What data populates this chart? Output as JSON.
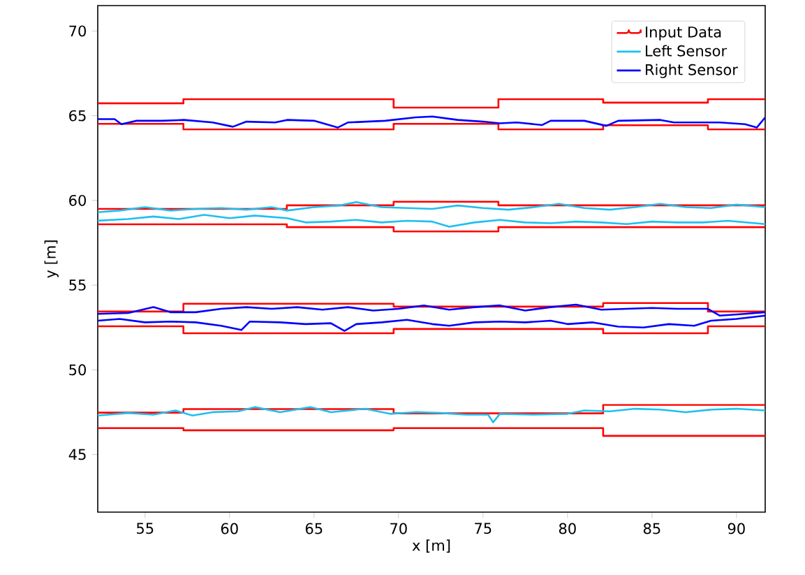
{
  "chart_data": {
    "type": "line",
    "xlabel": "x [m]",
    "ylabel": "y [m]",
    "xlim": [
      52.2,
      91.7
    ],
    "ylim": [
      41.6,
      71.5
    ],
    "xticks": [
      55,
      60,
      65,
      70,
      75,
      80,
      85,
      90
    ],
    "yticks": [
      45,
      50,
      55,
      60,
      65,
      70
    ],
    "legend": "top right",
    "x": [
      52.2,
      57.27,
      63.39,
      69.71,
      75.91,
      82.11,
      88.31,
      91.7
    ],
    "series": [
      {
        "name": "Input Data",
        "type": "step",
        "color": "#ff0000",
        "values": [
          65.73,
          65.98,
          65.98,
          65.48,
          65.98,
          65.77,
          65.98,
          65.98
        ]
      },
      {
        "type": "step",
        "color": "#ff0000",
        "values": [
          64.52,
          64.19,
          64.19,
          64.52,
          64.19,
          64.44,
          64.19,
          64.19
        ]
      },
      {
        "type": "step",
        "color": "#ff0000",
        "values": [
          59.5,
          59.5,
          59.71,
          59.92,
          59.71,
          59.71,
          59.71,
          59.71
        ]
      },
      {
        "type": "step",
        "color": "#ff0000",
        "values": [
          58.59,
          58.59,
          58.42,
          58.17,
          58.42,
          58.42,
          58.42,
          58.42
        ]
      },
      {
        "type": "step",
        "color": "#ff0000",
        "values": [
          53.44,
          53.9,
          53.9,
          53.73,
          53.73,
          53.94,
          53.44,
          53.44
        ]
      },
      {
        "type": "step",
        "color": "#ff0000",
        "values": [
          52.57,
          52.16,
          52.16,
          52.41,
          52.41,
          52.16,
          52.57,
          52.57
        ]
      },
      {
        "type": "step",
        "color": "#ff0000",
        "values": [
          47.47,
          47.68,
          47.68,
          47.43,
          47.43,
          47.93,
          47.93,
          47.93
        ]
      },
      {
        "type": "step",
        "color": "#ff0000",
        "values": [
          46.56,
          46.43,
          46.43,
          46.56,
          46.56,
          46.1,
          46.1,
          46.1
        ]
      },
      {
        "name": "Left Sensor",
        "color": "#1fbfef",
        "x": [
          52.2,
          53.5,
          55,
          56.5,
          58,
          59.5,
          61,
          62.5,
          63.4,
          65,
          66.5,
          67.5,
          69,
          70.5,
          72,
          73.5,
          75,
          76.5,
          78,
          79.5,
          81,
          82.5,
          84,
          85.5,
          87,
          88.5,
          90,
          91.7
        ],
        "values": [
          59.3,
          59.4,
          59.6,
          59.4,
          59.5,
          59.55,
          59.45,
          59.6,
          59.4,
          59.6,
          59.7,
          59.9,
          59.6,
          59.55,
          59.5,
          59.7,
          59.55,
          59.45,
          59.6,
          59.8,
          59.55,
          59.45,
          59.6,
          59.8,
          59.6,
          59.55,
          59.75,
          59.6
        ]
      },
      {
        "name": "Right Sensor",
        "color": "#0000ff",
        "x": [
          52.2,
          53.2,
          53.6,
          54.5,
          56,
          57.3,
          59,
          60.2,
          61,
          62.7,
          63.4,
          65,
          66.4,
          67,
          69.2,
          71,
          72,
          73.5,
          75,
          76,
          77,
          78.5,
          79,
          81,
          82.3,
          83,
          85.5,
          86.3,
          88,
          89,
          90.5,
          91.2,
          91.7
        ],
        "values": [
          64.8,
          64.8,
          64.5,
          64.7,
          64.7,
          64.75,
          64.6,
          64.35,
          64.65,
          64.6,
          64.75,
          64.7,
          64.3,
          64.6,
          64.7,
          64.9,
          64.95,
          64.75,
          64.65,
          64.55,
          64.6,
          64.45,
          64.7,
          64.7,
          64.4,
          64.7,
          64.75,
          64.6,
          64.6,
          64.6,
          64.5,
          64.3,
          64.9
        ]
      },
      {
        "color": "#1fbfef",
        "x": [
          52.2,
          54,
          55.5,
          57,
          58.5,
          60,
          61.5,
          63.4,
          64.5,
          66,
          67.5,
          69,
          70.5,
          72,
          73,
          74.5,
          76,
          77.5,
          79,
          80.5,
          82,
          83.5,
          85,
          86.5,
          88,
          89.5,
          91.7
        ],
        "values": [
          58.8,
          58.9,
          59.05,
          58.9,
          59.15,
          58.95,
          59.1,
          58.95,
          58.7,
          58.75,
          58.85,
          58.7,
          58.8,
          58.75,
          58.45,
          58.7,
          58.85,
          58.7,
          58.65,
          58.75,
          58.7,
          58.6,
          58.75,
          58.7,
          58.7,
          58.8,
          58.6
        ]
      },
      {
        "color": "#0000ff",
        "x": [
          52.2,
          54,
          55.5,
          56.5,
          58,
          59.5,
          61,
          62.5,
          64,
          65.5,
          67,
          68.5,
          70,
          71.5,
          73,
          74.5,
          76,
          77.5,
          79,
          80.5,
          82,
          83.5,
          85,
          86.5,
          88.3,
          89,
          90.5,
          91.7
        ],
        "values": [
          53.3,
          53.35,
          53.7,
          53.4,
          53.4,
          53.6,
          53.7,
          53.6,
          53.7,
          53.55,
          53.7,
          53.5,
          53.6,
          53.8,
          53.55,
          53.7,
          53.8,
          53.5,
          53.7,
          53.85,
          53.55,
          53.6,
          53.65,
          53.6,
          53.6,
          53.2,
          53.3,
          53.4
        ]
      },
      {
        "color": "#0000ff",
        "x": [
          52.2,
          53.5,
          55,
          56.5,
          58,
          59.5,
          60.7,
          61.2,
          63,
          64.5,
          66,
          66.8,
          67.5,
          69,
          70.5,
          72,
          73,
          74.5,
          76,
          77.5,
          79,
          80,
          81.5,
          83,
          84.5,
          86,
          87.5,
          88.5,
          90,
          91.7
        ],
        "values": [
          52.9,
          53.0,
          52.8,
          52.85,
          52.8,
          52.6,
          52.35,
          52.85,
          52.8,
          52.7,
          52.75,
          52.3,
          52.7,
          52.8,
          52.95,
          52.7,
          52.6,
          52.8,
          52.85,
          52.8,
          52.9,
          52.7,
          52.8,
          52.55,
          52.5,
          52.7,
          52.6,
          52.9,
          53.0,
          53.2
        ]
      },
      {
        "color": "#1fbfef",
        "x": [
          52.2,
          54,
          55.5,
          56.8,
          57.8,
          59,
          60.5,
          61.5,
          63,
          64.8,
          66,
          68,
          69.5,
          71,
          72.5,
          74,
          75.3,
          75.6,
          76,
          78,
          80,
          81,
          82.5,
          84,
          85.5,
          87,
          88.5,
          90,
          91.7
        ],
        "values": [
          47.3,
          47.45,
          47.35,
          47.6,
          47.3,
          47.5,
          47.55,
          47.8,
          47.5,
          47.8,
          47.5,
          47.7,
          47.4,
          47.5,
          47.45,
          47.35,
          47.35,
          46.9,
          47.4,
          47.35,
          47.4,
          47.6,
          47.55,
          47.7,
          47.65,
          47.5,
          47.65,
          47.7,
          47.6
        ]
      }
    ]
  }
}
